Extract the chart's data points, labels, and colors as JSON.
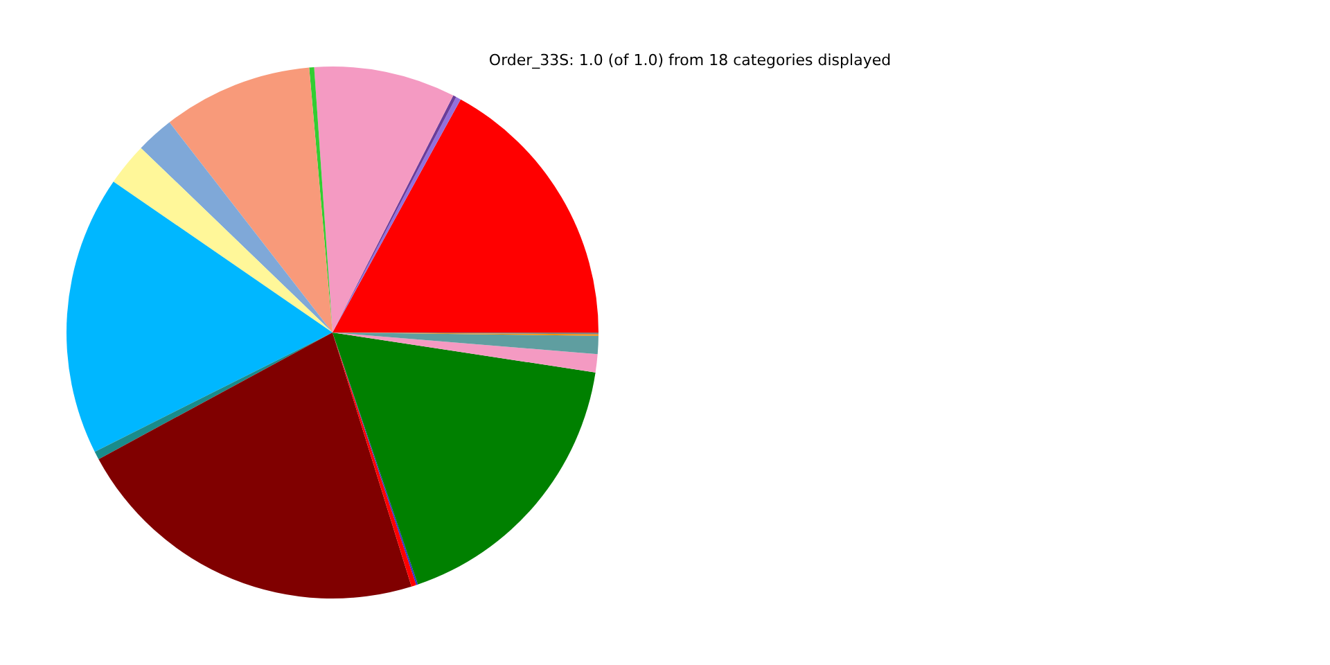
{
  "chart_data": {
    "type": "pie",
    "title": "Order_33S: 1.0 (of 1.0) from 18 categories displayed",
    "categories": [
      null,
      null,
      null,
      null,
      null,
      null,
      null,
      null,
      null,
      null,
      null,
      null,
      null,
      null,
      null,
      null,
      null,
      null
    ],
    "values": [
      17.0,
      0.3,
      0.2,
      8.6,
      0.3,
      9.1,
      2.3,
      2.6,
      17.0,
      0.5,
      21.9,
      0.3,
      0.1,
      17.4,
      1.1,
      1.1,
      0.1,
      0.1
    ],
    "colors": [
      "#ff0000",
      "#9370db",
      "#6a3d9a",
      "#f49ac2",
      "#32cd32",
      "#f89a7a",
      "#7fa8d8",
      "#fff799",
      "#00b7ff",
      "#198c8c",
      "#800000",
      "#ff0000",
      "#3030c0",
      "#008000",
      "#f49ac2",
      "#5f9ea0",
      "#ff8c00",
      "#808080"
    ]
  }
}
